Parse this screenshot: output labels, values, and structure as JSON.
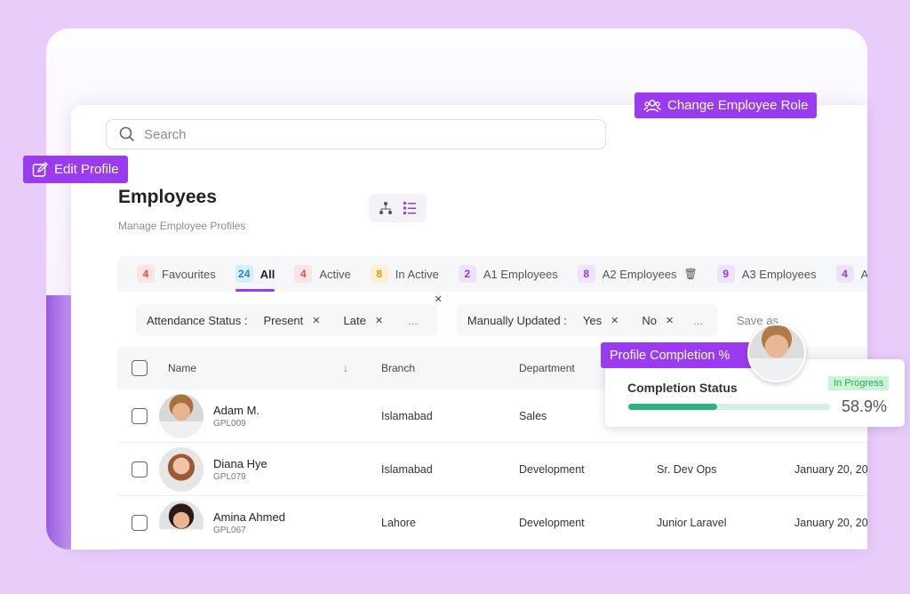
{
  "search": {
    "placeholder": "Search"
  },
  "badges": {
    "edit_profile": "Edit Profile",
    "change_role": "Change Employee Role",
    "profile_completion": "Profile Completion %"
  },
  "page": {
    "title": "Employees",
    "subtitle": "Manage Employee Profiles"
  },
  "tabs": [
    {
      "count": "4",
      "label": "Favourites",
      "bg": "#fde3e3",
      "fg": "#e05050"
    },
    {
      "count": "24",
      "label": "All",
      "bg": "#d6eef8",
      "fg": "#2b86b5",
      "selected": true
    },
    {
      "count": "4",
      "label": "Active",
      "bg": "#fde3e3",
      "fg": "#e05050"
    },
    {
      "count": "8",
      "label": "In Active",
      "bg": "#fdf0d2",
      "fg": "#d69a1a"
    },
    {
      "count": "2",
      "label": "A1 Employees",
      "bg": "#efe3fc",
      "fg": "#8a3ee0"
    },
    {
      "count": "8",
      "label": "A2 Employees",
      "bg": "#efe3fc",
      "fg": "#8a3ee0"
    },
    {
      "count": "9",
      "label": "A3 Employees",
      "bg": "#efe3fc",
      "fg": "#8a3ee0"
    },
    {
      "count": "4",
      "label": "A",
      "bg": "#efe3fc",
      "fg": "#8a3ee0"
    }
  ],
  "filters": {
    "attendance": {
      "label": "Attendance Status :",
      "chips": [
        "Present",
        "Late"
      ],
      "more": "..."
    },
    "manual": {
      "label": "Manually Updated :",
      "chips": [
        "Yes",
        "No"
      ],
      "more": "..."
    },
    "save_as": "Save as"
  },
  "table": {
    "headers": {
      "name": "Name",
      "branch": "Branch",
      "department": "Department"
    },
    "rows": [
      {
        "name": "Adam M.",
        "id": "GPL009",
        "branch": "Islamabad",
        "department": "Sales",
        "designation": "",
        "date": ""
      },
      {
        "name": "Diana Hye",
        "id": "GPL079",
        "branch": "Islamabad",
        "department": "Development",
        "designation": "Sr. Dev Ops",
        "date": "January 20, 20"
      },
      {
        "name": "Amina Ahmed",
        "id": "GPL067",
        "branch": "Lahore",
        "department": "Development",
        "designation": "Junior Laravel",
        "date": "January 20, 20"
      }
    ]
  },
  "completion": {
    "title": "Completion Status",
    "status": "In Progress",
    "percent": 58.9,
    "percent_label": "58.9%"
  },
  "colors": {
    "accent": "#9b3bf0",
    "progress": "#2fb07f",
    "progress_track": "#d5f0e6",
    "status_bg": "#c9f5d6"
  }
}
